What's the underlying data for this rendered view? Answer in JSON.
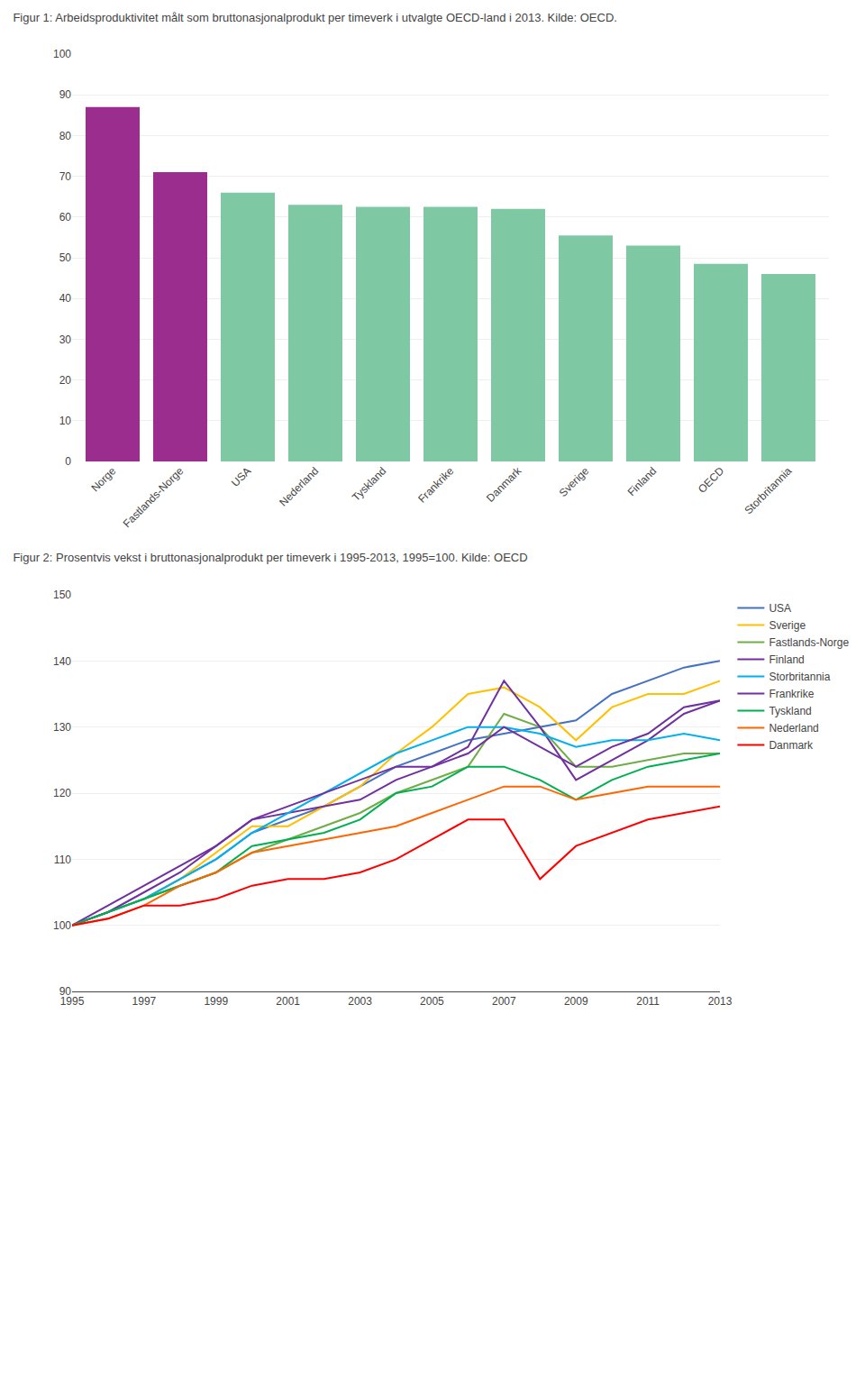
{
  "chart_data": [
    {
      "type": "bar",
      "title": "Figur 1: Arbeidsproduktivitet målt som bruttonasjonalprodukt per timeverk i utvalgte OECD-land i 2013. Kilde: OECD.",
      "categories": [
        "Norge",
        "Fastlands-Norge",
        "USA",
        "Nederland",
        "Tyskland",
        "Frankrike",
        "Danmark",
        "Sverige",
        "Finland",
        "OECD",
        "Storbritannia"
      ],
      "values": [
        87,
        71,
        66,
        63,
        62.5,
        62.5,
        62,
        55.5,
        53,
        48.5,
        46
      ],
      "colors": [
        "#9B2D8E",
        "#9B2D8E",
        "#7EC8A4",
        "#7EC8A4",
        "#7EC8A4",
        "#7EC8A4",
        "#7EC8A4",
        "#7EC8A4",
        "#7EC8A4",
        "#7EC8A4",
        "#7EC8A4"
      ],
      "ylim": [
        0,
        100
      ],
      "yticks": [
        0,
        10,
        20,
        30,
        40,
        50,
        60,
        70,
        80,
        90,
        100
      ],
      "grid": true
    },
    {
      "type": "line",
      "title": "Figur 2: Prosentvis vekst i bruttonasjonalprodukt per timeverk i 1995-2013, 1995=100. Kilde: OECD",
      "x": [
        1995,
        1996,
        1997,
        1998,
        1999,
        2000,
        2001,
        2002,
        2003,
        2004,
        2005,
        2006,
        2007,
        2008,
        2009,
        2010,
        2011,
        2012,
        2013
      ],
      "series": [
        {
          "name": "USA",
          "color": "#4472C4",
          "values": [
            100,
            102,
            104,
            107,
            110,
            114,
            116,
            118,
            121,
            124,
            126,
            128,
            129,
            130,
            131,
            135,
            137,
            139,
            140
          ]
        },
        {
          "name": "Sverige",
          "color": "#FFC000",
          "values": [
            100,
            102,
            104,
            107,
            111,
            115,
            115,
            118,
            121,
            126,
            130,
            135,
            136,
            133,
            128,
            133,
            135,
            135,
            137
          ]
        },
        {
          "name": "Fastlands-Norge",
          "color": "#70AD47",
          "values": [
            100,
            102,
            104,
            106,
            108,
            111,
            113,
            115,
            117,
            120,
            122,
            124,
            132,
            130,
            124,
            124,
            125,
            126,
            126
          ]
        },
        {
          "name": "Finland",
          "color": "#7030A0",
          "values": [
            100,
            103,
            106,
            109,
            112,
            116,
            117,
            118,
            119,
            122,
            124,
            127,
            137,
            130,
            122,
            125,
            128,
            132,
            134
          ]
        },
        {
          "name": "Storbritannia",
          "color": "#00B0F0",
          "values": [
            100,
            102,
            104,
            107,
            110,
            114,
            117,
            120,
            123,
            126,
            128,
            130,
            130,
            129,
            127,
            128,
            128,
            129,
            128
          ]
        },
        {
          "name": "Frankrike",
          "color": "#7030A0",
          "values": [
            100,
            102,
            105,
            108,
            112,
            116,
            118,
            120,
            122,
            124,
            124,
            126,
            130,
            127,
            124,
            127,
            129,
            133,
            134
          ]
        },
        {
          "name": "Tyskland",
          "color": "#00B050",
          "values": [
            100,
            102,
            104,
            106,
            108,
            112,
            113,
            114,
            116,
            120,
            121,
            124,
            124,
            122,
            119,
            122,
            124,
            125,
            126
          ]
        },
        {
          "name": "Nederland",
          "color": "#FF6600",
          "values": [
            100,
            101,
            103,
            106,
            108,
            111,
            112,
            113,
            114,
            115,
            117,
            119,
            121,
            121,
            119,
            120,
            121,
            121,
            121
          ]
        },
        {
          "name": "Danmark",
          "color": "#FF0000",
          "values": [
            100,
            101,
            103,
            103,
            104,
            106,
            107,
            107,
            108,
            110,
            113,
            116,
            116,
            107,
            112,
            114,
            116,
            117,
            118
          ]
        }
      ],
      "xlim": [
        1995,
        2013
      ],
      "xticks": [
        1995,
        1997,
        1999,
        2001,
        2003,
        2005,
        2007,
        2009,
        2011,
        2013
      ],
      "ylim": [
        90,
        150
      ],
      "yticks": [
        90,
        100,
        110,
        120,
        130,
        140,
        150
      ],
      "grid": true,
      "legend": "right"
    }
  ]
}
